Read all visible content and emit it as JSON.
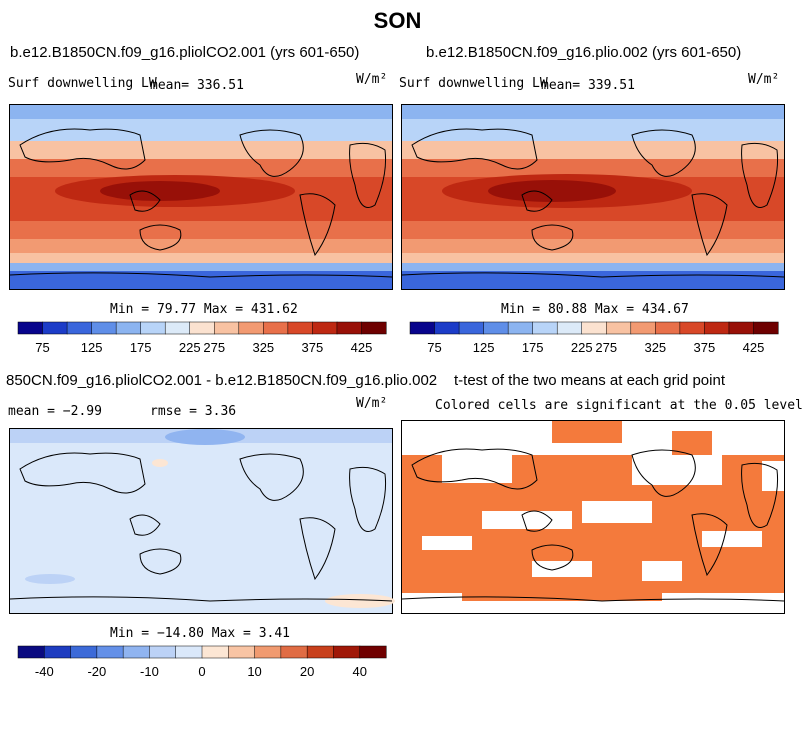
{
  "season": "SON",
  "panels": {
    "a": {
      "case": "b.e12.B1850CN.f09_g16.pliolCO2.001 (yrs 601-650)",
      "variable": "Surf downwelling LW",
      "mean_label": "mean= 336.51",
      "units": "W/m²",
      "minmax": "Min =  79.77 Max = 431.62"
    },
    "b": {
      "case": "b.e12.B1850CN.f09_g16.plio.002 (yrs 601-650)",
      "variable": "Surf downwelling LW",
      "mean_label": "mean= 339.51",
      "units": "W/m²",
      "minmax": "Min =  80.88 Max = 434.67"
    },
    "diff": {
      "title": "850CN.f09_g16.pliolCO2.001 - b.e12.B1850CN.f09_g16.plio.002",
      "mean_label": "mean =  −2.99",
      "rmse_label": "rmse =   3.36",
      "units": "W/m²",
      "minmax": "Min = −14.80 Max =   3.41"
    },
    "ttest": {
      "title": "t-test of the two means at each grid point",
      "subtitle": "Colored cells are significant at the 0.05 level"
    }
  },
  "colors": {
    "abs_scale": [
      "#08048c",
      "#1c3cc8",
      "#3a66dc",
      "#5f8ee8",
      "#8cb4f0",
      "#b8d4f8",
      "#dceaf8",
      "#fbe2d0",
      "#f8c2a2",
      "#f29a72",
      "#e8704a",
      "#d84828",
      "#be2812",
      "#981008",
      "#6e0000"
    ],
    "diff_scale": [
      "#0a0a80",
      "#1e3cc0",
      "#3c6ad8",
      "#6490e8",
      "#90b4f0",
      "#bcd2f6",
      "#dae8fa",
      "#fce6d4",
      "#f8c4a4",
      "#f09a70",
      "#e06c44",
      "#c8401c",
      "#a01808",
      "#700000"
    ],
    "significant": "#f47a3c"
  },
  "chart_data": [
    {
      "type": "heatmap",
      "title": "b.e12.B1850CN.f09_g16.pliolCO2.001 (yrs 601-650)",
      "variable": "Surf downwelling LW",
      "units": "W/m2",
      "mean": 336.51,
      "min": 79.77,
      "max": 431.62,
      "colorbar_levels": [
        75,
        100,
        125,
        150,
        175,
        200,
        225,
        250,
        275,
        300,
        325,
        350,
        375,
        400,
        425
      ],
      "colorbar_tick_labels": [
        "75",
        "125",
        "175",
        "225",
        "275",
        "325",
        "375",
        "425"
      ]
    },
    {
      "type": "heatmap",
      "title": "b.e12.B1850CN.f09_g16.plio.002 (yrs 601-650)",
      "variable": "Surf downwelling LW",
      "units": "W/m2",
      "mean": 339.51,
      "min": 80.88,
      "max": 434.67,
      "colorbar_levels": [
        75,
        100,
        125,
        150,
        175,
        200,
        225,
        250,
        275,
        300,
        325,
        350,
        375,
        400,
        425
      ],
      "colorbar_tick_labels": [
        "75",
        "125",
        "175",
        "225",
        "275",
        "325",
        "375",
        "425"
      ]
    },
    {
      "type": "heatmap",
      "title": "850CN.f09_g16.pliolCO2.001 - b.e12.B1850CN.f09_g16.plio.002",
      "units": "W/m2",
      "mean": -2.99,
      "rmse": 3.36,
      "min": -14.8,
      "max": 3.41,
      "colorbar_tick_labels": [
        "-40",
        "-20",
        "-10",
        "0",
        "10",
        "20",
        "40"
      ]
    },
    {
      "type": "heatmap",
      "title": "t-test of the two means at each grid point",
      "subtitle": "Colored cells are significant at the 0.05 level"
    }
  ]
}
